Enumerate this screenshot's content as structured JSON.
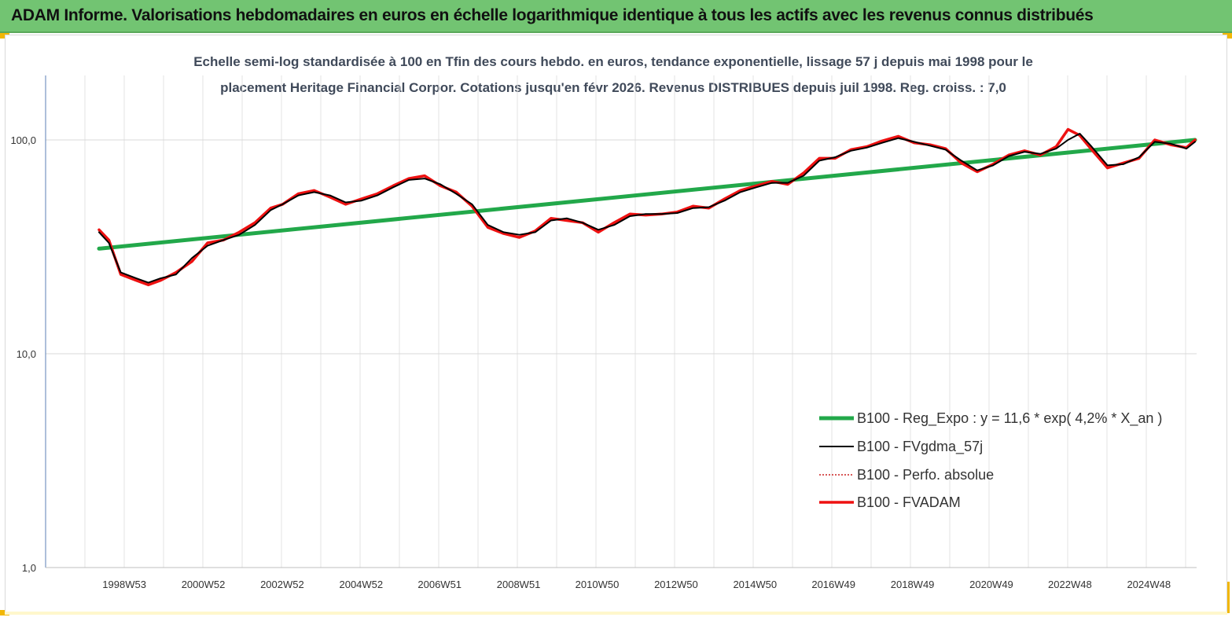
{
  "banner": {
    "title": "ADAM Informe. Valorisations hebdomadaires en euros en échelle logarithmique identique à tous les actifs avec les revenus connus distribués",
    "background": "#72c472"
  },
  "chart_data": {
    "type": "line",
    "subtitle_line1": "Echelle semi-log standardisée à 100 en Tfin des cours hebdo. en euros, tendance exponentielle, lissage 57 j depuis mai 1998 pour le",
    "subtitle_line2": "placement Heritage Financial Corpor. Cotations jusqu'en févr 2026. Revenus DISTRIBUES depuis juil 1998. Reg. croiss. : 7,0",
    "y_scale": "log",
    "ylim": [
      1,
      100
    ],
    "y_ticks": [
      "100,0",
      "10,0",
      "1,0"
    ],
    "x_tick_labels": [
      "1998W53",
      "2000W52",
      "2002W52",
      "2004W52",
      "2006W51",
      "2008W51",
      "2010W50",
      "2012W50",
      "2014W50",
      "2016W49",
      "2018W49",
      "2020W49",
      "2022W48",
      "2024W48"
    ],
    "x_tick_years": [
      1998.99,
      2000.99,
      2002.99,
      2004.99,
      2006.98,
      2008.98,
      2010.97,
      2012.97,
      2014.97,
      2016.96,
      2018.96,
      2020.96,
      2022.95,
      2024.95
    ],
    "x_range_years": [
      1998.35,
      2026.12
    ],
    "grid": "vertical",
    "legend_position": "bottom-right",
    "series": [
      {
        "name": "B100 - Reg_Expo : y = 11,6 * exp( 4,2% * X_an )",
        "color": "#22a84a",
        "x": [
          1998.35,
          2026.12
        ],
        "values": [
          31.0,
          100.0
        ]
      },
      {
        "name": "B100 - FVgdma_57j",
        "color": "#000000",
        "x": [
          1998.35,
          1998.6,
          1998.9,
          1999.3,
          1999.6,
          1999.9,
          2000.3,
          2000.7,
          2001.1,
          2001.5,
          2001.9,
          2002.3,
          2002.7,
          2003.0,
          2003.4,
          2003.8,
          2004.2,
          2004.6,
          2005.0,
          2005.4,
          2005.8,
          2006.2,
          2006.6,
          2007.0,
          2007.4,
          2007.8,
          2008.2,
          2008.6,
          2009.0,
          2009.4,
          2009.8,
          2010.2,
          2010.6,
          2011.0,
          2011.4,
          2011.8,
          2012.2,
          2012.6,
          2013.0,
          2013.4,
          2013.8,
          2014.2,
          2014.6,
          2015.0,
          2015.4,
          2015.8,
          2016.2,
          2016.6,
          2017.0,
          2017.4,
          2017.8,
          2018.2,
          2018.6,
          2019.0,
          2019.4,
          2019.8,
          2020.2,
          2020.6,
          2021.0,
          2021.4,
          2021.8,
          2022.2,
          2022.6,
          2022.9,
          2023.2,
          2023.5,
          2023.9,
          2024.3,
          2024.7,
          2025.1,
          2025.5,
          2025.9,
          2026.12
        ],
        "values": [
          37,
          33,
          24,
          22.5,
          21.5,
          22.5,
          23.5,
          28,
          32,
          34,
          36,
          40,
          47,
          50,
          55,
          57,
          55,
          51,
          52,
          55,
          60,
          65,
          66,
          62,
          56,
          50,
          40,
          37,
          36,
          37,
          42,
          43,
          41,
          38,
          40,
          44,
          45,
          45,
          45.5,
          48,
          48.5,
          52,
          57,
          60,
          63,
          63,
          68,
          80,
          83,
          89,
          92,
          97,
          102,
          98,
          94,
          90,
          80,
          72,
          76,
          84,
          88,
          86,
          91,
          100,
          107,
          93,
          76,
          77,
          83,
          98,
          96,
          91,
          98
        ]
      },
      {
        "name": "B100 - Perfo. absolue",
        "color": "#cc2222",
        "x": [],
        "values": []
      },
      {
        "name": "B100 - FVADAM",
        "color": "#ee1111",
        "x": [
          1998.35,
          1998.6,
          1998.9,
          1999.3,
          1999.6,
          1999.9,
          2000.3,
          2000.7,
          2001.1,
          2001.5,
          2001.9,
          2002.3,
          2002.7,
          2003.0,
          2003.4,
          2003.8,
          2004.2,
          2004.6,
          2005.0,
          2005.4,
          2005.8,
          2006.2,
          2006.6,
          2007.0,
          2007.4,
          2007.8,
          2008.2,
          2008.6,
          2009.0,
          2009.4,
          2009.8,
          2010.2,
          2010.6,
          2011.0,
          2011.4,
          2011.8,
          2012.2,
          2012.6,
          2013.0,
          2013.4,
          2013.8,
          2014.2,
          2014.6,
          2015.0,
          2015.4,
          2015.8,
          2016.2,
          2016.6,
          2017.0,
          2017.4,
          2017.8,
          2018.2,
          2018.6,
          2019.0,
          2019.4,
          2019.8,
          2020.2,
          2020.6,
          2021.0,
          2021.4,
          2021.8,
          2022.2,
          2022.6,
          2022.9,
          2023.2,
          2023.5,
          2023.9,
          2024.3,
          2024.7,
          2025.1,
          2025.5,
          2025.9,
          2026.12
        ],
        "values": [
          38,
          34,
          23.5,
          22,
          21,
          22,
          24,
          27,
          33,
          34,
          37,
          41,
          48,
          50,
          56,
          58,
          54,
          50,
          53,
          56,
          61,
          66,
          68,
          61,
          57,
          49,
          39,
          36.5,
          35,
          37.5,
          43,
          42,
          41,
          37,
          41,
          45,
          44.5,
          45,
          46,
          49,
          48,
          53,
          58,
          61,
          64,
          62,
          70,
          82,
          82,
          90,
          93,
          99,
          104,
          97,
          95,
          91,
          78,
          71,
          77,
          85,
          89,
          85,
          93,
          112,
          105,
          90,
          74,
          78,
          82,
          100,
          95,
          92,
          100
        ]
      }
    ]
  }
}
